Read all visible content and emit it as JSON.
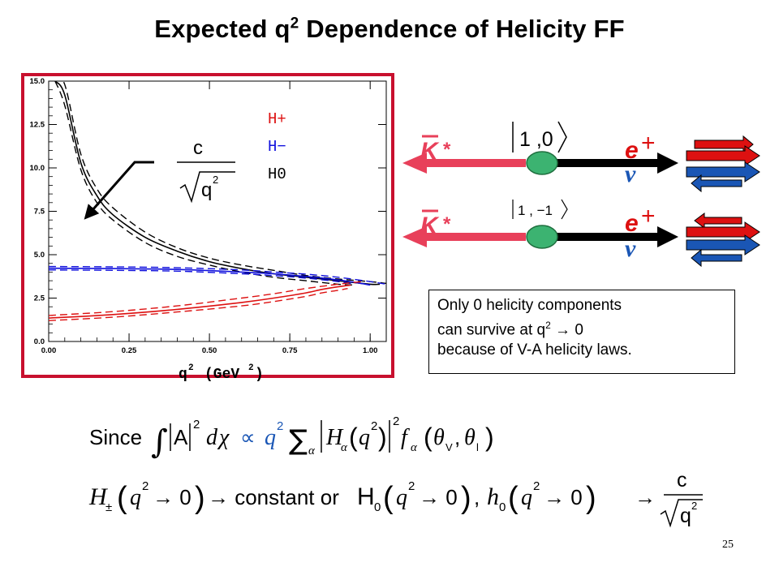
{
  "title": {
    "main": "Expected q",
    "sup": "2",
    "rest": " Dependence of Helicity FF"
  },
  "chart_data": {
    "type": "line",
    "xlabel_main": "q",
    "xlabel_sup": "2",
    "xlabel_rest": "(GeV",
    "xlabel_rest_sup": "2",
    "xlabel_close": ")",
    "xlim": [
      0.0,
      1.05
    ],
    "ylim": [
      0.0,
      15.0
    ],
    "x_ticks": [
      "0.00",
      "0.25",
      "0.50",
      "0.75",
      "1.00"
    ],
    "x_tick_values": [
      0.0,
      0.25,
      0.5,
      0.75,
      1.0
    ],
    "y_ticks": [
      "0.0",
      "2.5",
      "5.0",
      "7.5",
      "10.0",
      "12.5",
      "15.0"
    ],
    "y_tick_values": [
      0.0,
      2.5,
      5.0,
      7.5,
      10.0,
      12.5,
      15.0
    ],
    "legend": [
      {
        "label": "H+",
        "color": "#dd1111"
      },
      {
        "label": "H−",
        "color": "#1111dd"
      },
      {
        "label": "H0",
        "color": "#000000"
      }
    ],
    "curves": {
      "H0": {
        "color": "#000000",
        "x": [
          0.02,
          0.05,
          0.1,
          0.15,
          0.2,
          0.3,
          0.4,
          0.5,
          0.6,
          0.7,
          0.8,
          0.9,
          1.0,
          1.03
        ],
        "y": [
          15.0,
          14.2,
          10.3,
          8.4,
          7.3,
          6.0,
          5.2,
          4.6,
          4.2,
          3.9,
          3.7,
          3.5,
          3.3,
          3.3
        ]
      },
      "H0_up": {
        "color": "#000000",
        "x": [
          0.02,
          0.05,
          0.1,
          0.15,
          0.2,
          0.3,
          0.4,
          0.5,
          0.6,
          0.7,
          0.8,
          0.9,
          1.0,
          1.05
        ],
        "y": [
          15.0,
          14.8,
          10.8,
          8.8,
          7.7,
          6.3,
          5.4,
          4.8,
          4.4,
          4.1,
          3.8,
          3.6,
          3.45,
          3.35
        ]
      },
      "H0_dn": {
        "color": "#000000",
        "x": [
          0.02,
          0.05,
          0.1,
          0.15,
          0.2,
          0.3,
          0.4,
          0.5,
          0.6,
          0.7,
          0.8,
          0.9,
          0.95
        ],
        "y": [
          15.0,
          13.6,
          9.9,
          8.0,
          7.0,
          5.7,
          4.9,
          4.4,
          4.0,
          3.7,
          3.5,
          3.3,
          3.25
        ]
      },
      "Hminus": {
        "color": "#1111dd",
        "x": [
          0.0,
          0.2,
          0.4,
          0.6,
          0.7,
          0.8,
          0.9,
          0.97,
          1.0
        ],
        "y": [
          4.22,
          4.2,
          4.15,
          4.0,
          3.9,
          3.75,
          3.55,
          3.35,
          3.25
        ]
      },
      "Hminus_up": {
        "color": "#1111dd",
        "x": [
          0.0,
          0.2,
          0.4,
          0.6,
          0.7,
          0.8,
          0.9,
          1.0,
          1.05
        ],
        "y": [
          4.32,
          4.3,
          4.25,
          4.12,
          4.0,
          3.88,
          3.7,
          3.45,
          3.3
        ]
      },
      "Hminus_dn": {
        "color": "#1111dd",
        "x": [
          0.0,
          0.2,
          0.4,
          0.6,
          0.7,
          0.8,
          0.9,
          0.95
        ],
        "y": [
          4.12,
          4.1,
          4.05,
          3.9,
          3.8,
          3.65,
          3.45,
          3.3
        ]
      },
      "Hplus": {
        "color": "#dd1111",
        "x": [
          0.0,
          0.2,
          0.4,
          0.6,
          0.7,
          0.8,
          0.85,
          0.9,
          0.94
        ],
        "y": [
          1.35,
          1.55,
          1.85,
          2.25,
          2.5,
          2.8,
          3.0,
          3.15,
          3.25
        ]
      },
      "Hplus_up": {
        "color": "#dd1111",
        "x": [
          0.0,
          0.2,
          0.4,
          0.6,
          0.7,
          0.8,
          0.9,
          0.95,
          0.98
        ],
        "y": [
          1.5,
          1.72,
          2.05,
          2.5,
          2.75,
          3.05,
          3.3,
          3.4,
          3.45
        ]
      },
      "Hplus_dn": {
        "color": "#dd1111",
        "x": [
          0.0,
          0.2,
          0.4,
          0.6,
          0.7,
          0.8,
          0.85,
          0.9,
          0.93
        ],
        "y": [
          1.2,
          1.4,
          1.7,
          2.05,
          2.3,
          2.6,
          2.8,
          2.95,
          3.05
        ]
      }
    }
  },
  "formula_c_over_sqrt_q2": {
    "numerator": "c",
    "radicand": "q",
    "radicand_sup": "2"
  },
  "diagram": {
    "state_top": "1 ,0",
    "state_bottom": "1 , −1",
    "kbar_label": "K",
    "kbar_star": "*",
    "positron_label": "e",
    "positron_charge": "+",
    "neutrino_label": "ν",
    "colors": {
      "meson": "#e8405a",
      "vertex": "#3cb371",
      "red_arrow": "#dd1111",
      "blue_arrow": "#1a56b5"
    }
  },
  "note": {
    "line1": "Only 0 helicity components",
    "line2_pre": "can survive at q",
    "line2_sup": "2",
    "line2_post": " → 0",
    "line3": "because of V-A helicity laws."
  },
  "equation1": {
    "since": "Since",
    "integral": "∫",
    "abs_A": "|A|",
    "sup2": "2",
    "d": "d",
    "chi": "χ",
    "propto": "∝",
    "q": "q",
    "sum": "∑",
    "alpha": "α",
    "H": "H",
    "f": "f",
    "theta_V": "θ",
    "sub_V": "V",
    "theta_l": "θ",
    "sub_l": "l"
  },
  "equation2": {
    "Hpm": "H",
    "pm": "±",
    "q": "q",
    "sup2": "2",
    "arrow_zero": "→ 0",
    "constant_or": "→ constant or",
    "H0": "H",
    "h0": "h",
    "sub0": "0",
    "comma": ",",
    "arrow": "→",
    "c": "c"
  },
  "page_number": "25"
}
